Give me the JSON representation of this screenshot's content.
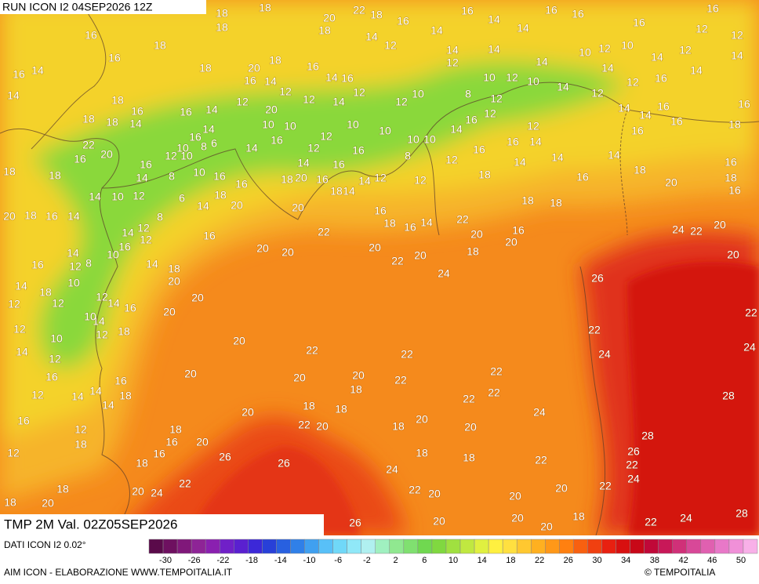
{
  "header": "RUN ICON I2 04SEP2026 12Z",
  "panel_title": "TMP 2M Val. 02Z05SEP2026",
  "source_note": "DATI ICON I2 0.02°",
  "credit": "AIM ICON - ELABORAZIONE WWW.TEMPOITALIA.IT",
  "brand": "© TEMPOITALIA",
  "map_labels": [
    18,
    18,
    20,
    22,
    18,
    16,
    16,
    16,
    16,
    16,
    16,
    18,
    18,
    14,
    12,
    14,
    14,
    14,
    16,
    12,
    12,
    18,
    16,
    18,
    20,
    14,
    14,
    12,
    14,
    10,
    12,
    10,
    14,
    12,
    14,
    16,
    14,
    18,
    16,
    16,
    14,
    14,
    16,
    12,
    12,
    12,
    14,
    10,
    12,
    8,
    10,
    12,
    10,
    12,
    14,
    14,
    12,
    16,
    14,
    14,
    18,
    18,
    18,
    14,
    16,
    16,
    14,
    12,
    20,
    14,
    10,
    10,
    10,
    10,
    10,
    10,
    16,
    12,
    14,
    12,
    12,
    14,
    16,
    14,
    16,
    18,
    16,
    22,
    20,
    16,
    16,
    10,
    8,
    6,
    10,
    12,
    16,
    14,
    16,
    12,
    12,
    14,
    16,
    16,
    8,
    12,
    16,
    16,
    14,
    14,
    14,
    18,
    14,
    16,
    12,
    12,
    14,
    14,
    18,
    16,
    20,
    18,
    16,
    16,
    10,
    8,
    14,
    12,
    10,
    8,
    12,
    14,
    12,
    6,
    14,
    18,
    20,
    20,
    16,
    18,
    16,
    14,
    22,
    20,
    16,
    20,
    18,
    18,
    16,
    18,
    20,
    16,
    18,
    16,
    18,
    18,
    20,
    18,
    16,
    14,
    14,
    16,
    20,
    20,
    22,
    20,
    22,
    20,
    24,
    18,
    24,
    22,
    20,
    20,
    26,
    22,
    24,
    24,
    22,
    28,
    28,
    26,
    22,
    24,
    22,
    20,
    22,
    20,
    18,
    18,
    24,
    22,
    20,
    20,
    20,
    18,
    22,
    24,
    28,
    26,
    20,
    26,
    26,
    22,
    20,
    18,
    18,
    18,
    20,
    20,
    22,
    22,
    22,
    24,
    22,
    22,
    20,
    18,
    20,
    22,
    20,
    20,
    20,
    20,
    18,
    22,
    24,
    20,
    18,
    16,
    16,
    16,
    12,
    16,
    14,
    14,
    12,
    18,
    12,
    18,
    20,
    18,
    16,
    18,
    14,
    10,
    14,
    12,
    12,
    12,
    14,
    10,
    18,
    16,
    14,
    12,
    20,
    20,
    20,
    18,
    14,
    16,
    10,
    8,
    12,
    14,
    16,
    14,
    18,
    12,
    10,
    12
  ],
  "scale": {
    "labels": [
      -30,
      -26,
      -22,
      -18,
      -14,
      -10,
      -6,
      -2,
      2,
      6,
      10,
      14,
      18,
      22,
      26,
      30,
      34,
      38,
      42,
      46,
      50
    ],
    "colors": [
      "#5a0a4a",
      "#6e1060",
      "#80187a",
      "#8e2496",
      "#8a20b0",
      "#7020c8",
      "#5a20d0",
      "#3c28d8",
      "#2840d8",
      "#2860e0",
      "#3080e8",
      "#40a0f0",
      "#58c0f8",
      "#70d8f8",
      "#90e8f8",
      "#b0f0f0",
      "#a0f0c0",
      "#90e890",
      "#80e070",
      "#70d850",
      "#80d840",
      "#a0e040",
      "#c0e840",
      "#e0f040",
      "#fff040",
      "#ffe040",
      "#ffc830",
      "#ffb020",
      "#ff9818",
      "#ff8010",
      "#f86010",
      "#f04010",
      "#e82010",
      "#d81010",
      "#c80818",
      "#c00838",
      "#c81858",
      "#d03078",
      "#d84898",
      "#e060b0",
      "#e878c8",
      "#f090d8",
      "#f8b0e8"
    ]
  }
}
